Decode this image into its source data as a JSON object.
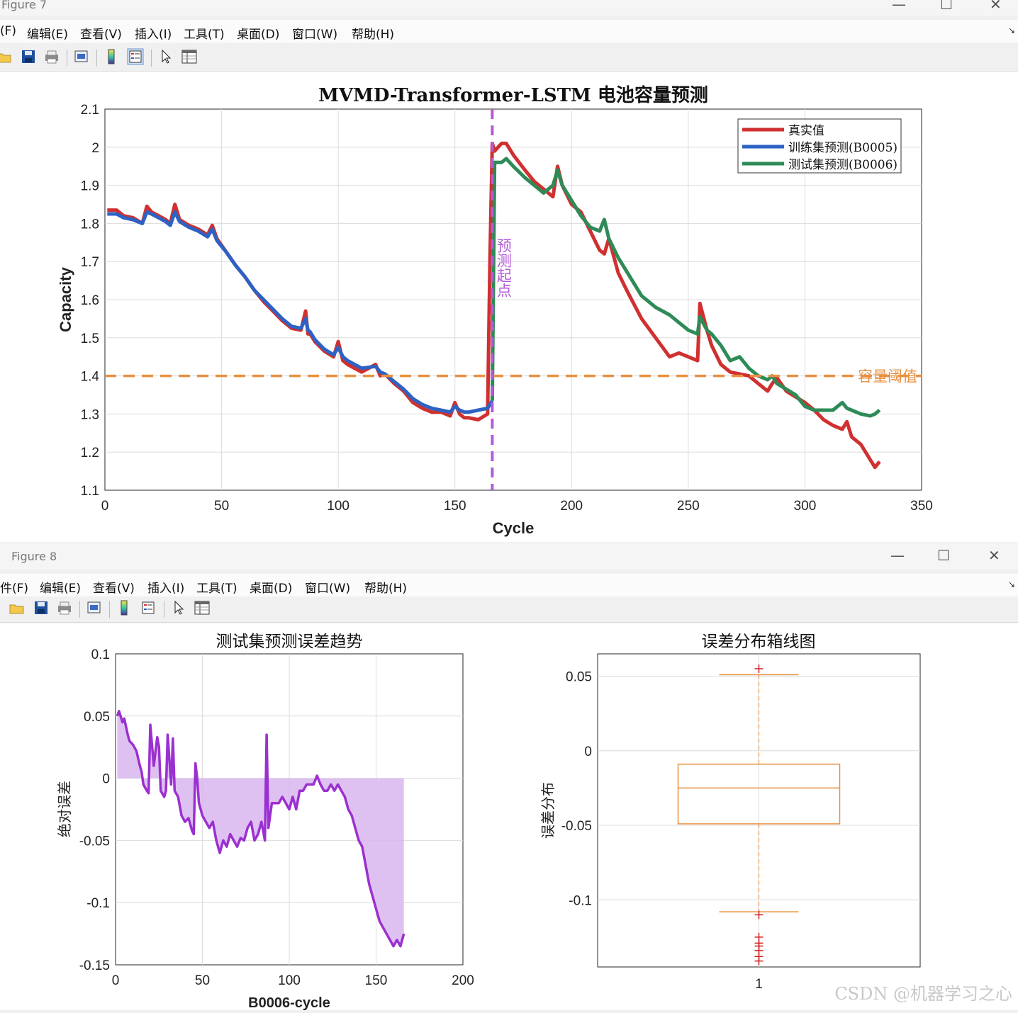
{
  "windows": [
    {
      "title": "Figure 7",
      "menu": [
        "(F)",
        "编辑(E)",
        "查看(V)",
        "插入(I)",
        "工具(T)",
        "桌面(D)",
        "窗口(W)",
        "帮助(H)"
      ]
    },
    {
      "title": "Figure 8",
      "menu": [
        "件(F)",
        "编辑(E)",
        "查看(V)",
        "插入(I)",
        "工具(T)",
        "桌面(D)",
        "窗口(W)",
        "帮助(H)"
      ]
    }
  ],
  "window_controls": {
    "minimize": "—",
    "maximize": "☐",
    "close": "✕",
    "menu_end": "↘"
  },
  "toolbar_icons": [
    "open-folder-icon",
    "save-icon",
    "print-icon",
    "print-preview-icon",
    "colorbar-icon",
    "legend-icon",
    "pointer-icon",
    "property-inspector-icon"
  ],
  "watermark": "CSDN @机器学习之心",
  "chart_data": [
    {
      "type": "line",
      "title": "MVMD-Transformer-LSTM 电池容量预测",
      "xlabel": "Cycle",
      "ylabel": "Capacity",
      "xlim": [
        0,
        350
      ],
      "ylim": [
        1.1,
        2.1
      ],
      "xticks": [
        0,
        50,
        100,
        150,
        200,
        250,
        300,
        350
      ],
      "yticks": [
        1.1,
        1.2,
        1.3,
        1.4,
        1.5,
        1.6,
        1.7,
        1.8,
        1.9,
        2,
        2.1
      ],
      "ytick_labels": [
        "1.1",
        "1.2",
        "1.3",
        "1.4",
        "1.5",
        "1.6",
        "1.7",
        "1.8",
        "1.9",
        "2",
        "2.1"
      ],
      "grid": true,
      "legend_position": "top-right",
      "series": [
        {
          "name": "真实值",
          "color": "#d03030",
          "x": [
            1,
            5,
            8,
            12,
            16,
            18,
            20,
            23,
            26,
            28,
            30,
            32,
            36,
            40,
            44,
            46,
            48,
            52,
            56,
            60,
            64,
            68,
            72,
            76,
            80,
            84,
            86,
            87,
            88,
            90,
            94,
            98,
            100,
            102,
            104,
            110,
            116,
            118,
            120,
            124,
            128,
            132,
            136,
            140,
            144,
            148,
            150,
            152,
            154,
            156,
            160,
            164,
            165,
            166,
            167,
            170,
            172,
            175,
            180,
            184,
            188,
            192,
            194,
            196,
            200,
            204,
            208,
            212,
            214,
            216,
            220,
            224,
            230,
            236,
            242,
            246,
            250,
            254,
            255,
            258,
            260,
            264,
            268,
            272,
            276,
            280,
            284,
            286,
            288,
            292,
            296,
            300,
            304,
            308,
            312,
            316,
            318,
            320,
            324,
            328,
            330,
            332
          ],
          "values": [
            1.835,
            1.835,
            1.82,
            1.815,
            1.8,
            1.845,
            1.83,
            1.82,
            1.81,
            1.8,
            1.85,
            1.81,
            1.795,
            1.785,
            1.77,
            1.795,
            1.76,
            1.725,
            1.69,
            1.66,
            1.625,
            1.595,
            1.57,
            1.545,
            1.525,
            1.52,
            1.57,
            1.51,
            1.51,
            1.49,
            1.465,
            1.45,
            1.49,
            1.44,
            1.43,
            1.41,
            1.43,
            1.4,
            1.405,
            1.38,
            1.36,
            1.33,
            1.315,
            1.305,
            1.305,
            1.295,
            1.33,
            1.3,
            1.29,
            1.29,
            1.285,
            1.3,
            1.7,
            2.01,
            1.99,
            2.01,
            2.01,
            1.98,
            1.94,
            1.91,
            1.89,
            1.87,
            1.95,
            1.9,
            1.85,
            1.83,
            1.78,
            1.73,
            1.72,
            1.76,
            1.67,
            1.62,
            1.55,
            1.5,
            1.45,
            1.46,
            1.45,
            1.44,
            1.59,
            1.52,
            1.48,
            1.43,
            1.41,
            1.405,
            1.4,
            1.38,
            1.36,
            1.38,
            1.395,
            1.36,
            1.345,
            1.33,
            1.31,
            1.285,
            1.27,
            1.26,
            1.28,
            1.24,
            1.22,
            1.18,
            1.16,
            1.175
          ]
        },
        {
          "name": "训练集预测(B0005)",
          "color": "#2d62c4",
          "x": [
            1,
            5,
            8,
            12,
            16,
            18,
            20,
            23,
            26,
            28,
            30,
            32,
            36,
            40,
            44,
            46,
            48,
            52,
            56,
            60,
            64,
            68,
            72,
            76,
            80,
            84,
            86,
            87,
            88,
            90,
            94,
            98,
            100,
            102,
            104,
            110,
            116,
            118,
            120,
            124,
            128,
            132,
            136,
            140,
            144,
            148,
            150,
            152,
            154,
            156,
            160,
            164,
            166
          ],
          "values": [
            1.825,
            1.825,
            1.815,
            1.81,
            1.8,
            1.83,
            1.825,
            1.815,
            1.805,
            1.795,
            1.83,
            1.805,
            1.79,
            1.78,
            1.765,
            1.785,
            1.755,
            1.725,
            1.69,
            1.66,
            1.625,
            1.6,
            1.575,
            1.55,
            1.53,
            1.525,
            1.55,
            1.52,
            1.515,
            1.495,
            1.47,
            1.455,
            1.475,
            1.45,
            1.44,
            1.42,
            1.425,
            1.41,
            1.405,
            1.385,
            1.365,
            1.34,
            1.325,
            1.315,
            1.31,
            1.305,
            1.32,
            1.31,
            1.305,
            1.305,
            1.31,
            1.315,
            1.335
          ]
        },
        {
          "name": "测试集预测(B0006)",
          "color": "#2e8b57",
          "x": [
            166,
            167,
            170,
            172,
            175,
            180,
            184,
            188,
            192,
            194,
            196,
            200,
            204,
            208,
            212,
            214,
            216,
            220,
            224,
            230,
            236,
            242,
            246,
            250,
            254,
            255,
            258,
            260,
            264,
            268,
            272,
            276,
            280,
            284,
            286,
            288,
            292,
            296,
            300,
            304,
            308,
            312,
            316,
            318,
            320,
            324,
            328,
            330,
            332
          ],
          "values": [
            1.335,
            1.96,
            1.96,
            1.97,
            1.95,
            1.92,
            1.9,
            1.88,
            1.9,
            1.94,
            1.9,
            1.86,
            1.82,
            1.79,
            1.78,
            1.81,
            1.76,
            1.71,
            1.67,
            1.61,
            1.58,
            1.56,
            1.54,
            1.52,
            1.51,
            1.555,
            1.52,
            1.51,
            1.48,
            1.44,
            1.45,
            1.42,
            1.4,
            1.39,
            1.4,
            1.38,
            1.365,
            1.35,
            1.32,
            1.31,
            1.31,
            1.31,
            1.33,
            1.315,
            1.31,
            1.3,
            1.295,
            1.3,
            1.31
          ]
        }
      ],
      "prediction_start": {
        "x": 166,
        "label": "预测起点",
        "color": "#b45ad8"
      },
      "threshold": {
        "y": 1.4,
        "label": "容量阈值",
        "color": "#e89040"
      }
    },
    {
      "type": "area",
      "title": "测试集预测误差趋势",
      "xlabel": "B0006-cycle",
      "ylabel": "绝对误差",
      "xlim": [
        0,
        200
      ],
      "ylim": [
        -0.15,
        0.1
      ],
      "xticks": [
        0,
        50,
        100,
        150,
        200
      ],
      "yticks": [
        -0.15,
        -0.1,
        -0.05,
        0,
        0.05,
        0.1
      ],
      "ytick_labels": [
        "-0.15",
        "-0.1",
        "-0.05",
        "0",
        "0.05",
        "0.1"
      ],
      "grid": true,
      "series": [
        {
          "name": "",
          "color": "#9b30d0",
          "fill": "#d9b6ee",
          "x": [
            1,
            2,
            4,
            5,
            7,
            8,
            10,
            12,
            14,
            15,
            16,
            18,
            19,
            20,
            22,
            24,
            25,
            26,
            28,
            29,
            30,
            32,
            33,
            34,
            36,
            38,
            40,
            42,
            44,
            45,
            46,
            47,
            48,
            50,
            52,
            54,
            56,
            58,
            60,
            62,
            64,
            66,
            68,
            70,
            72,
            74,
            76,
            78,
            80,
            82,
            84,
            86,
            87,
            88,
            90,
            92,
            94,
            96,
            98,
            100,
            102,
            104,
            106,
            108,
            110,
            112,
            114,
            116,
            118,
            120,
            122,
            124,
            126,
            128,
            130,
            132,
            134,
            136,
            138,
            140,
            142,
            144,
            146,
            148,
            150,
            152,
            154,
            156,
            158,
            160,
            162,
            164,
            166
          ],
          "values": [
            0.05,
            0.054,
            0.045,
            0.048,
            0.035,
            0.03,
            0.027,
            0.022,
            0.01,
            0.005,
            -0.005,
            -0.01,
            -0.012,
            0.043,
            0.01,
            0.033,
            0.025,
            -0.01,
            -0.015,
            -0.01,
            0.035,
            -0.005,
            0.032,
            -0.01,
            -0.015,
            -0.03,
            -0.035,
            -0.032,
            -0.042,
            -0.045,
            0.012,
            0.0,
            -0.02,
            -0.03,
            -0.035,
            -0.04,
            -0.035,
            -0.05,
            -0.06,
            -0.05,
            -0.055,
            -0.045,
            -0.05,
            -0.055,
            -0.048,
            -0.05,
            -0.04,
            -0.035,
            -0.05,
            -0.045,
            -0.035,
            -0.05,
            0.035,
            -0.04,
            -0.02,
            -0.02,
            -0.02,
            -0.015,
            -0.02,
            -0.025,
            -0.015,
            -0.025,
            -0.01,
            -0.01,
            -0.005,
            -0.005,
            -0.005,
            0.002,
            -0.005,
            -0.01,
            -0.01,
            -0.005,
            -0.01,
            -0.005,
            -0.01,
            -0.015,
            -0.025,
            -0.03,
            -0.04,
            -0.05,
            -0.055,
            -0.07,
            -0.085,
            -0.095,
            -0.105,
            -0.115,
            -0.12,
            -0.125,
            -0.13,
            -0.135,
            -0.13,
            -0.135,
            -0.125
          ]
        }
      ]
    },
    {
      "type": "box",
      "title": "误差分布箱线图",
      "ylabel": "误差分布",
      "xticks": [
        1
      ],
      "yticks": [
        -0.1,
        -0.05,
        0,
        0.05
      ],
      "ytick_labels": [
        "-0.1",
        "-0.05",
        "0",
        "0.05"
      ],
      "ylim": [
        -0.145,
        0.065
      ],
      "grid": true,
      "box": {
        "whisker_high": 0.051,
        "q3": -0.009,
        "median": -0.025,
        "q1": -0.049,
        "whisker_low": -0.108,
        "outliers": [
          0.055,
          -0.11,
          -0.125,
          -0.129,
          -0.131,
          -0.134,
          -0.138,
          -0.141
        ],
        "box_color": "#e89040",
        "outlier_color": "#d02020"
      }
    }
  ]
}
